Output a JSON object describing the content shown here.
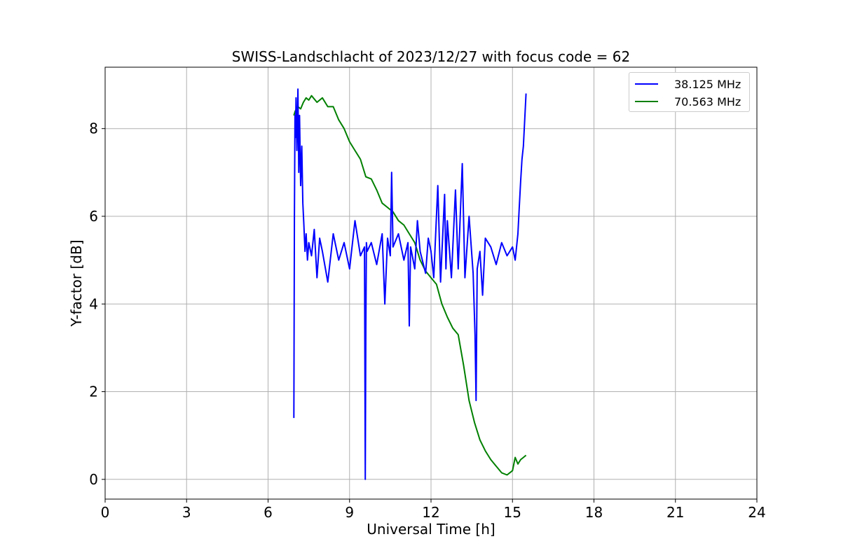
{
  "chart_data": {
    "type": "line",
    "title": "SWISS-Landschlacht of 2023/12/27 with focus code = 62",
    "xlabel": "Universal Time [h]",
    "ylabel": "Y-factor [dB]",
    "xlim": [
      0,
      24
    ],
    "ylim": [
      -0.45,
      9.4
    ],
    "xticks": [
      0,
      3,
      6,
      9,
      12,
      15,
      18,
      21,
      24
    ],
    "yticks": [
      0,
      2,
      4,
      6,
      8
    ],
    "grid": true,
    "legend_position": "top-right",
    "series": [
      {
        "name": "38.125 MHz",
        "color": "#0000ff",
        "x": [
          6.95,
          6.97,
          6.99,
          7.01,
          7.03,
          7.06,
          7.1,
          7.13,
          7.16,
          7.2,
          7.24,
          7.28,
          7.32,
          7.36,
          7.4,
          7.45,
          7.5,
          7.6,
          7.7,
          7.8,
          7.9,
          8.0,
          8.2,
          8.4,
          8.6,
          8.8,
          9.0,
          9.2,
          9.4,
          9.55,
          9.58,
          9.6,
          9.62,
          9.65,
          9.8,
          10.0,
          10.2,
          10.3,
          10.4,
          10.5,
          10.55,
          10.6,
          10.8,
          11.0,
          11.15,
          11.2,
          11.25,
          11.4,
          11.5,
          11.6,
          11.8,
          11.9,
          12.0,
          12.1,
          12.25,
          12.35,
          12.5,
          12.55,
          12.6,
          12.75,
          12.9,
          13.0,
          13.15,
          13.25,
          13.4,
          13.55,
          13.62,
          13.66,
          13.7,
          13.8,
          13.9,
          14.0,
          14.2,
          14.4,
          14.6,
          14.8,
          15.0,
          15.1,
          15.2,
          15.25,
          15.3,
          15.35,
          15.4,
          15.45,
          15.5
        ],
        "y": [
          1.4,
          6.0,
          8.3,
          7.8,
          8.7,
          7.5,
          8.9,
          7.0,
          8.3,
          6.7,
          7.6,
          6.3,
          5.8,
          5.2,
          5.6,
          5.0,
          5.4,
          5.1,
          5.7,
          4.6,
          5.5,
          5.2,
          4.5,
          5.6,
          5.0,
          5.4,
          4.8,
          5.9,
          5.1,
          5.3,
          0.0,
          3.4,
          5.4,
          5.2,
          5.4,
          4.9,
          5.6,
          4.0,
          5.5,
          5.1,
          7.0,
          5.3,
          5.6,
          5.0,
          5.4,
          3.5,
          5.3,
          4.8,
          5.9,
          5.2,
          4.7,
          5.5,
          5.2,
          4.6,
          6.7,
          4.5,
          6.5,
          4.8,
          5.9,
          4.6,
          6.6,
          4.8,
          7.2,
          4.6,
          6.0,
          4.7,
          3.3,
          1.8,
          4.8,
          5.2,
          4.2,
          5.5,
          5.3,
          4.9,
          5.4,
          5.1,
          5.3,
          5.0,
          5.6,
          6.2,
          6.8,
          7.3,
          7.6,
          8.2,
          8.8
        ]
      },
      {
        "name": "70.563 MHz",
        "color": "#008000",
        "x": [
          6.95,
          7.0,
          7.1,
          7.2,
          7.3,
          7.4,
          7.5,
          7.6,
          7.8,
          8.0,
          8.2,
          8.4,
          8.6,
          8.8,
          9.0,
          9.2,
          9.4,
          9.6,
          9.8,
          10.0,
          10.2,
          10.4,
          10.6,
          10.8,
          11.0,
          11.2,
          11.4,
          11.6,
          11.8,
          12.0,
          12.2,
          12.4,
          12.6,
          12.8,
          13.0,
          13.2,
          13.4,
          13.6,
          13.8,
          14.0,
          14.2,
          14.4,
          14.6,
          14.8,
          15.0,
          15.1,
          15.2,
          15.3,
          15.4,
          15.5
        ],
        "y": [
          8.3,
          8.4,
          8.5,
          8.45,
          8.6,
          8.7,
          8.65,
          8.75,
          8.6,
          8.7,
          8.5,
          8.5,
          8.2,
          8.0,
          7.7,
          7.5,
          7.3,
          6.9,
          6.85,
          6.6,
          6.3,
          6.2,
          6.1,
          5.9,
          5.8,
          5.6,
          5.4,
          5.0,
          4.75,
          4.6,
          4.45,
          4.0,
          3.7,
          3.45,
          3.3,
          2.6,
          1.8,
          1.3,
          0.9,
          0.65,
          0.45,
          0.3,
          0.15,
          0.1,
          0.2,
          0.5,
          0.35,
          0.45,
          0.5,
          0.55
        ]
      }
    ]
  }
}
